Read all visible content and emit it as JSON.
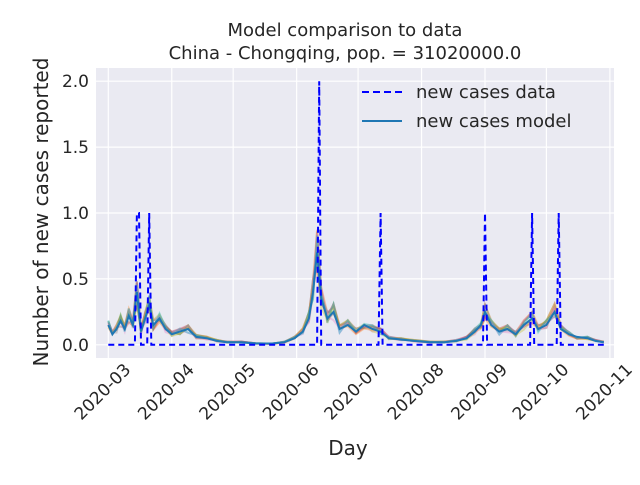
{
  "chart_data": {
    "type": "line",
    "title": "Model comparison to data",
    "subtitle": "China - Chongqing, pop. = 31020000.0",
    "xlabel": "Day",
    "ylabel": "Number of new cases reported",
    "x_start": "2020-03-01",
    "x_end": "2020-11-01",
    "xlim": [
      "2020-02-24",
      "2020-11-03"
    ],
    "ylim": [
      -0.1,
      2.1
    ],
    "x_tick_labels": [
      "2020-03",
      "2020-04",
      "2020-05",
      "2020-06",
      "2020-07",
      "2020-08",
      "2020-09",
      "2020-10",
      "2020-11"
    ],
    "y_ticks": [
      0.0,
      0.5,
      1.0,
      1.5,
      2.0
    ],
    "y_tick_labels": [
      "0.0",
      "0.5",
      "1.0",
      "1.5",
      "2.0"
    ],
    "grid": true,
    "background": "#eaeaf2",
    "legend_position": "top-right",
    "legend": [
      "new cases data",
      "new cases model"
    ],
    "data_series": {
      "name": "new cases data",
      "style": "dashed",
      "color": "#0000ff",
      "points": [
        [
          "2020-03-01",
          0
        ],
        [
          "2020-03-03",
          0
        ],
        [
          "2020-03-05",
          0
        ],
        [
          "2020-03-07",
          0
        ],
        [
          "2020-03-09",
          0
        ],
        [
          "2020-03-11",
          0
        ],
        [
          "2020-03-13",
          0
        ],
        [
          "2020-03-14",
          0
        ],
        [
          "2020-03-15",
          1
        ],
        [
          "2020-03-16",
          1
        ],
        [
          "2020-03-17",
          0
        ],
        [
          "2020-03-18",
          0
        ],
        [
          "2020-03-19",
          0
        ],
        [
          "2020-03-20",
          0
        ],
        [
          "2020-03-21",
          1
        ],
        [
          "2020-03-22",
          0
        ],
        [
          "2020-04-01",
          0
        ],
        [
          "2020-04-15",
          0
        ],
        [
          "2020-05-01",
          0
        ],
        [
          "2020-05-15",
          0
        ],
        [
          "2020-06-01",
          0
        ],
        [
          "2020-06-10",
          0
        ],
        [
          "2020-06-11",
          0
        ],
        [
          "2020-06-12",
          2
        ],
        [
          "2020-06-13",
          0
        ],
        [
          "2020-06-20",
          0
        ],
        [
          "2020-07-01",
          0
        ],
        [
          "2020-07-10",
          0
        ],
        [
          "2020-07-11",
          0
        ],
        [
          "2020-07-12",
          1
        ],
        [
          "2020-07-13",
          0
        ],
        [
          "2020-08-01",
          0
        ],
        [
          "2020-08-15",
          0
        ],
        [
          "2020-08-30",
          0
        ],
        [
          "2020-08-31",
          0
        ],
        [
          "2020-09-01",
          1
        ],
        [
          "2020-09-02",
          0
        ],
        [
          "2020-09-15",
          0
        ],
        [
          "2020-09-22",
          0
        ],
        [
          "2020-09-23",
          0
        ],
        [
          "2020-09-24",
          1
        ],
        [
          "2020-09-25",
          0
        ],
        [
          "2020-10-01",
          0
        ],
        [
          "2020-10-05",
          0
        ],
        [
          "2020-10-06",
          0
        ],
        [
          "2020-10-07",
          1
        ],
        [
          "2020-10-08",
          0
        ],
        [
          "2020-10-20",
          0
        ],
        [
          "2020-10-29",
          0
        ]
      ]
    },
    "model_series": {
      "name": "new cases model",
      "style": "solid",
      "color": "#1f77b4",
      "points": [
        [
          "2020-03-01",
          0.15
        ],
        [
          "2020-03-03",
          0.08
        ],
        [
          "2020-03-05",
          0.12
        ],
        [
          "2020-03-07",
          0.18
        ],
        [
          "2020-03-09",
          0.12
        ],
        [
          "2020-03-11",
          0.22
        ],
        [
          "2020-03-13",
          0.15
        ],
        [
          "2020-03-15",
          0.4
        ],
        [
          "2020-03-17",
          0.1
        ],
        [
          "2020-03-19",
          0.2
        ],
        [
          "2020-03-21",
          0.3
        ],
        [
          "2020-03-23",
          0.15
        ],
        [
          "2020-03-26",
          0.2
        ],
        [
          "2020-03-29",
          0.12
        ],
        [
          "2020-04-01",
          0.08
        ],
        [
          "2020-04-05",
          0.1
        ],
        [
          "2020-04-09",
          0.12
        ],
        [
          "2020-04-13",
          0.06
        ],
        [
          "2020-04-18",
          0.05
        ],
        [
          "2020-04-23",
          0.03
        ],
        [
          "2020-04-28",
          0.02
        ],
        [
          "2020-05-05",
          0.02
        ],
        [
          "2020-05-12",
          0.01
        ],
        [
          "2020-05-20",
          0.01
        ],
        [
          "2020-05-26",
          0.02
        ],
        [
          "2020-05-31",
          0.05
        ],
        [
          "2020-06-04",
          0.1
        ],
        [
          "2020-06-07",
          0.2
        ],
        [
          "2020-06-09",
          0.4
        ],
        [
          "2020-06-11",
          0.7
        ],
        [
          "2020-06-13",
          0.35
        ],
        [
          "2020-06-16",
          0.2
        ],
        [
          "2020-06-19",
          0.25
        ],
        [
          "2020-06-22",
          0.12
        ],
        [
          "2020-06-26",
          0.15
        ],
        [
          "2020-06-30",
          0.1
        ],
        [
          "2020-07-04",
          0.15
        ],
        [
          "2020-07-08",
          0.12
        ],
        [
          "2020-07-12",
          0.1
        ],
        [
          "2020-07-16",
          0.05
        ],
        [
          "2020-07-22",
          0.04
        ],
        [
          "2020-07-28",
          0.03
        ],
        [
          "2020-08-05",
          0.02
        ],
        [
          "2020-08-12",
          0.02
        ],
        [
          "2020-08-18",
          0.03
        ],
        [
          "2020-08-23",
          0.05
        ],
        [
          "2020-08-27",
          0.1
        ],
        [
          "2020-08-30",
          0.15
        ],
        [
          "2020-09-01",
          0.25
        ],
        [
          "2020-09-04",
          0.15
        ],
        [
          "2020-09-08",
          0.1
        ],
        [
          "2020-09-12",
          0.12
        ],
        [
          "2020-09-16",
          0.08
        ],
        [
          "2020-09-20",
          0.15
        ],
        [
          "2020-09-24",
          0.2
        ],
        [
          "2020-09-27",
          0.12
        ],
        [
          "2020-10-01",
          0.15
        ],
        [
          "2020-10-05",
          0.25
        ],
        [
          "2020-10-08",
          0.12
        ],
        [
          "2020-10-12",
          0.08
        ],
        [
          "2020-10-16",
          0.06
        ],
        [
          "2020-10-21",
          0.05
        ],
        [
          "2020-10-25",
          0.03
        ],
        [
          "2020-10-29",
          0.02
        ]
      ]
    }
  }
}
